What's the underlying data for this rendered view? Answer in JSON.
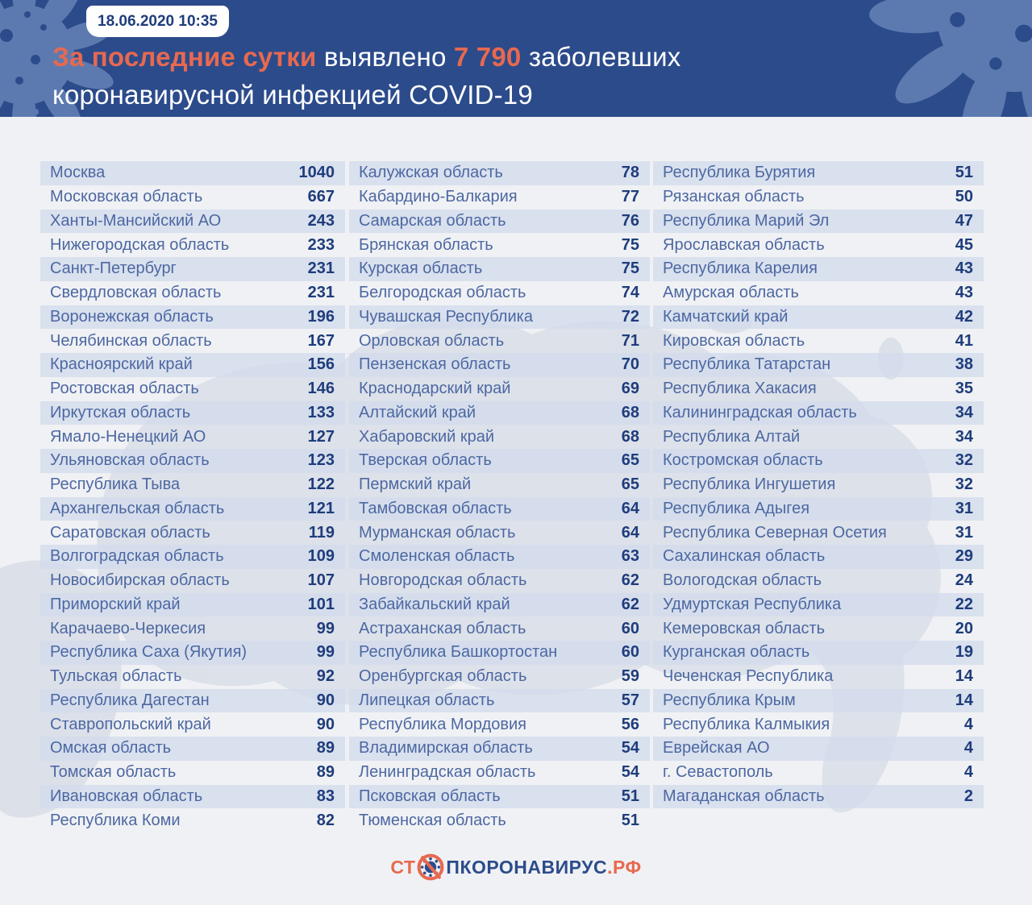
{
  "header": {
    "date": "18.06.2020 10:35",
    "title": {
      "part1": "За последние сутки",
      "part2": " выявлено ",
      "part3": "7 790",
      "part4": " заболевших",
      "line2": "коронавирусной инфекцией COVID-19"
    }
  },
  "colors": {
    "header_bg": "#2c4b8b",
    "accent_orange": "#e76950",
    "region_text": "#4c68a2",
    "value_text": "#1e3d7c",
    "stripe": "#dde4ef",
    "page_bg": "#f0f1f4",
    "logo_blue": "#2b4c8c"
  },
  "footer": {
    "logo_prefix": "СТ",
    "logo_icon": "no-virus-icon",
    "logo_middle": "ПКОРОНАВИРУС",
    "logo_suffix": ".РФ"
  },
  "chart_data": {
    "type": "table",
    "title": "За последние сутки выявлено 7 790 заболевших коронавирусной инфекцией COVID-19",
    "timestamp": "18.06.2020 10:35",
    "total_new_cases": 7790,
    "columns": [
      {
        "rows": [
          {
            "region": "Москва",
            "value": 1040
          },
          {
            "region": "Московская область",
            "value": 667
          },
          {
            "region": "Ханты-Мансийский АО",
            "value": 243
          },
          {
            "region": "Нижегородская область",
            "value": 233
          },
          {
            "region": "Санкт-Петербург",
            "value": 231
          },
          {
            "region": "Свердловская область",
            "value": 231
          },
          {
            "region": "Воронежская область",
            "value": 196
          },
          {
            "region": "Челябинская область",
            "value": 167
          },
          {
            "region": "Красноярский край",
            "value": 156
          },
          {
            "region": "Ростовская область",
            "value": 146
          },
          {
            "region": "Иркутская область",
            "value": 133
          },
          {
            "region": "Ямало-Ненецкий АО",
            "value": 127
          },
          {
            "region": "Ульяновская область",
            "value": 123
          },
          {
            "region": "Республика Тыва",
            "value": 122
          },
          {
            "region": "Архангельская область",
            "value": 121
          },
          {
            "region": "Саратовская область",
            "value": 119
          },
          {
            "region": "Волгоградская область",
            "value": 109
          },
          {
            "region": "Новосибирская область",
            "value": 107
          },
          {
            "region": "Приморский край",
            "value": 101
          },
          {
            "region": "Карачаево-Черкесия",
            "value": 99
          },
          {
            "region": "Республика Саха (Якутия)",
            "value": 99
          },
          {
            "region": "Тульская область",
            "value": 92
          },
          {
            "region": "Республика Дагестан",
            "value": 90
          },
          {
            "region": "Ставропольский край",
            "value": 90
          },
          {
            "region": "Омская область",
            "value": 89
          },
          {
            "region": "Томская область",
            "value": 89
          },
          {
            "region": "Ивановская область",
            "value": 83
          },
          {
            "region": "Республика Коми",
            "value": 82
          }
        ]
      },
      {
        "rows": [
          {
            "region": "Калужская область",
            "value": 78
          },
          {
            "region": "Кабардино-Балкария",
            "value": 77
          },
          {
            "region": "Самарская область",
            "value": 76
          },
          {
            "region": "Брянская область",
            "value": 75
          },
          {
            "region": "Курская область",
            "value": 75
          },
          {
            "region": "Белгородская область",
            "value": 74
          },
          {
            "region": "Чувашская Республика",
            "value": 72
          },
          {
            "region": "Орловская область",
            "value": 71
          },
          {
            "region": "Пензенская область",
            "value": 70
          },
          {
            "region": "Краснодарский край",
            "value": 69
          },
          {
            "region": "Алтайский край",
            "value": 68
          },
          {
            "region": "Хабаровский край",
            "value": 68
          },
          {
            "region": "Тверская область",
            "value": 65
          },
          {
            "region": "Пермский край",
            "value": 65
          },
          {
            "region": "Тамбовская область",
            "value": 64
          },
          {
            "region": "Мурманская область",
            "value": 64
          },
          {
            "region": "Смоленская область",
            "value": 63
          },
          {
            "region": "Новгородская область",
            "value": 62
          },
          {
            "region": "Забайкальский край",
            "value": 62
          },
          {
            "region": "Астраханская область",
            "value": 60
          },
          {
            "region": "Республика Башкортостан",
            "value": 60
          },
          {
            "region": "Оренбургская область",
            "value": 59
          },
          {
            "region": "Липецкая область",
            "value": 57
          },
          {
            "region": "Республика Мордовия",
            "value": 56
          },
          {
            "region": "Владимирская область",
            "value": 54
          },
          {
            "region": "Ленинградская область",
            "value": 54
          },
          {
            "region": "Псковская область",
            "value": 51
          },
          {
            "region": "Тюменская область",
            "value": 51
          }
        ]
      },
      {
        "rows": [
          {
            "region": "Республика Бурятия",
            "value": 51
          },
          {
            "region": "Рязанская область",
            "value": 50
          },
          {
            "region": "Республика Марий Эл",
            "value": 47
          },
          {
            "region": "Ярославская область",
            "value": 45
          },
          {
            "region": "Республика Карелия",
            "value": 43
          },
          {
            "region": "Амурская область",
            "value": 43
          },
          {
            "region": "Камчатский край",
            "value": 42
          },
          {
            "region": "Кировская область",
            "value": 41
          },
          {
            "region": "Республика Татарстан",
            "value": 38
          },
          {
            "region": "Республика Хакасия",
            "value": 35
          },
          {
            "region": "Калининградская область",
            "value": 34
          },
          {
            "region": "Республика Алтай",
            "value": 34
          },
          {
            "region": "Костромская область",
            "value": 32
          },
          {
            "region": "Республика Ингушетия",
            "value": 32
          },
          {
            "region": "Республика Адыгея",
            "value": 31
          },
          {
            "region": "Республика Северная Осетия",
            "value": 31
          },
          {
            "region": "Сахалинская область",
            "value": 29
          },
          {
            "region": "Вологодская область",
            "value": 24
          },
          {
            "region": "Удмуртская Республика",
            "value": 22
          },
          {
            "region": "Кемеровская область",
            "value": 20
          },
          {
            "region": "Курганская область",
            "value": 19
          },
          {
            "region": "Чеченская Республика",
            "value": 14
          },
          {
            "region": "Республика Крым",
            "value": 14
          },
          {
            "region": "Республика Калмыкия",
            "value": 4
          },
          {
            "region": "Еврейская АО",
            "value": 4
          },
          {
            "region": "г. Севастополь",
            "value": 4
          },
          {
            "region": "Магаданская область",
            "value": 2
          }
        ]
      }
    ]
  }
}
